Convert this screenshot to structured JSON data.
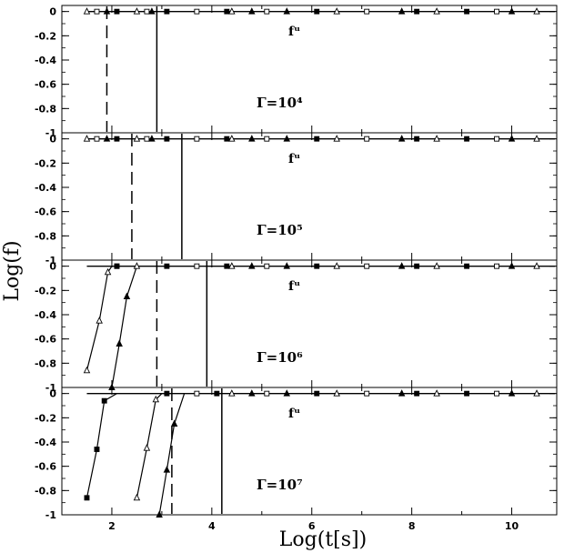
{
  "chart_data": {
    "type": "line",
    "xlabel": "Log(t[s])",
    "ylabel": "Log(f)",
    "xlim": [
      1.0,
      10.9
    ],
    "x_ticks": [
      "2",
      "4",
      "6",
      "8",
      "10"
    ],
    "y_ticks": [
      "0",
      "-0.2",
      "-0.4",
      "-0.6",
      "-0.8",
      "-1"
    ],
    "panels": [
      {
        "label": "Γ=10⁴",
        "curve_label": "fᵘ",
        "ylim": [
          -1,
          0.05
        ],
        "vlines": [
          {
            "style": "dashed",
            "x": 1.9
          },
          {
            "style": "solid",
            "x": 2.9
          }
        ],
        "series": [
          {
            "marker": "open-triangle",
            "points": [
              [
                1.5,
                0
              ],
              [
                2.5,
                0
              ],
              [
                4.4,
                0
              ],
              [
                6.5,
                0
              ],
              [
                8.5,
                0
              ],
              [
                10.5,
                0
              ]
            ]
          },
          {
            "marker": "open-square",
            "points": [
              [
                1.7,
                0
              ],
              [
                2.7,
                0
              ],
              [
                3.7,
                0
              ],
              [
                5.1,
                0
              ],
              [
                7.1,
                0
              ],
              [
                9.7,
                0
              ]
            ]
          },
          {
            "marker": "filled-triangle",
            "points": [
              [
                1.9,
                0
              ],
              [
                2.8,
                0
              ],
              [
                4.8,
                0
              ],
              [
                5.5,
                0
              ],
              [
                7.8,
                0
              ],
              [
                10.0,
                0
              ]
            ]
          },
          {
            "marker": "filled-square",
            "points": [
              [
                2.1,
                0
              ],
              [
                3.1,
                0
              ],
              [
                4.3,
                0
              ],
              [
                6.1,
                0
              ],
              [
                8.1,
                0
              ],
              [
                9.1,
                0
              ]
            ]
          }
        ]
      },
      {
        "label": "Γ=10⁵",
        "curve_label": "fᵘ",
        "ylim": [
          -1,
          0.05
        ],
        "vlines": [
          {
            "style": "dashed",
            "x": 2.4
          },
          {
            "style": "solid",
            "x": 3.4
          }
        ],
        "series": [
          {
            "marker": "open-triangle",
            "points": [
              [
                1.5,
                0
              ],
              [
                2.5,
                0
              ],
              [
                4.4,
                0
              ],
              [
                6.5,
                0
              ],
              [
                8.5,
                0
              ],
              [
                10.5,
                0
              ]
            ]
          },
          {
            "marker": "open-square",
            "points": [
              [
                1.7,
                0
              ],
              [
                2.7,
                0
              ],
              [
                3.7,
                0
              ],
              [
                5.1,
                0
              ],
              [
                7.1,
                0
              ],
              [
                9.7,
                0
              ]
            ]
          },
          {
            "marker": "filled-triangle",
            "points": [
              [
                1.9,
                0
              ],
              [
                2.8,
                0
              ],
              [
                4.8,
                0
              ],
              [
                5.5,
                0
              ],
              [
                7.8,
                0
              ],
              [
                10.0,
                0
              ]
            ]
          },
          {
            "marker": "filled-square",
            "points": [
              [
                2.1,
                0
              ],
              [
                3.1,
                0
              ],
              [
                4.3,
                0
              ],
              [
                6.1,
                0
              ],
              [
                8.1,
                0
              ],
              [
                9.1,
                0
              ]
            ]
          }
        ]
      },
      {
        "label": "Γ=10⁶",
        "curve_label": "fᵘ",
        "ylim": [
          -1,
          0.05
        ],
        "vlines": [
          {
            "style": "dashed",
            "x": 2.9
          },
          {
            "style": "solid",
            "x": 3.9
          }
        ],
        "series": [
          {
            "marker": "open-triangle",
            "points": [
              [
                1.5,
                -0.86
              ],
              [
                1.75,
                -0.45
              ],
              [
                1.92,
                -0.05
              ],
              [
                2.0,
                0.0
              ],
              [
                2.5,
                0
              ],
              [
                4.4,
                0
              ],
              [
                6.5,
                0
              ],
              [
                8.5,
                0
              ],
              [
                10.5,
                0
              ]
            ]
          },
          {
            "marker": "open-square",
            "points": [
              [
                2.1,
                0
              ],
              [
                3.7,
                0
              ],
              [
                5.1,
                0
              ],
              [
                7.1,
                0
              ],
              [
                9.7,
                0
              ]
            ]
          },
          {
            "marker": "filled-triangle",
            "points": [
              [
                2.0,
                -1.0
              ],
              [
                2.15,
                -0.64
              ],
              [
                2.3,
                -0.25
              ],
              [
                2.5,
                0.0
              ],
              [
                4.8,
                0
              ],
              [
                5.5,
                0
              ],
              [
                7.8,
                0
              ],
              [
                10.0,
                0
              ]
            ]
          },
          {
            "marker": "filled-square",
            "points": [
              [
                2.1,
                0
              ],
              [
                3.1,
                0
              ],
              [
                4.3,
                0
              ],
              [
                6.1,
                0
              ],
              [
                8.1,
                0
              ],
              [
                9.1,
                0
              ]
            ]
          }
        ]
      },
      {
        "label": "Γ=10⁷",
        "curve_label": "fᵘ",
        "ylim": [
          -1,
          0.05
        ],
        "vlines": [
          {
            "style": "dashed",
            "x": 3.2
          },
          {
            "style": "solid",
            "x": 4.2
          }
        ],
        "series": [
          {
            "marker": "filled-square",
            "points": [
              [
                1.5,
                -0.86
              ],
              [
                1.7,
                -0.46
              ],
              [
                1.85,
                -0.06
              ],
              [
                2.1,
                0.0
              ],
              [
                3.1,
                0
              ],
              [
                4.1,
                0
              ],
              [
                6.1,
                0
              ],
              [
                8.1,
                0
              ],
              [
                9.1,
                0
              ]
            ]
          },
          {
            "marker": "open-triangle",
            "points": [
              [
                2.5,
                -0.86
              ],
              [
                2.7,
                -0.45
              ],
              [
                2.88,
                -0.05
              ],
              [
                3.0,
                0.0
              ],
              [
                4.4,
                0
              ],
              [
                6.5,
                0
              ],
              [
                8.5,
                0
              ],
              [
                10.5,
                0
              ]
            ]
          },
          {
            "marker": "filled-triangle",
            "points": [
              [
                2.95,
                -1.0
              ],
              [
                3.1,
                -0.63
              ],
              [
                3.25,
                -0.25
              ],
              [
                3.45,
                0.0
              ],
              [
                4.8,
                0
              ],
              [
                5.5,
                0
              ],
              [
                7.8,
                0
              ],
              [
                10.0,
                0
              ]
            ]
          },
          {
            "marker": "open-square",
            "points": [
              [
                3.7,
                0
              ],
              [
                5.1,
                0
              ],
              [
                7.1,
                0
              ],
              [
                9.7,
                0
              ]
            ]
          }
        ]
      }
    ]
  }
}
